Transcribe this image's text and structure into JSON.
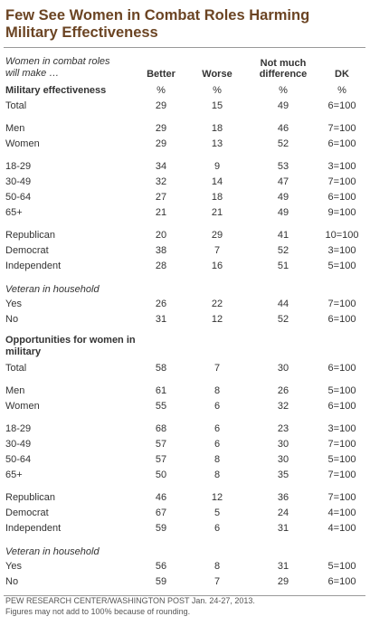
{
  "header": {
    "title_lines": [
      "Few See Women in Combat Roles Harming",
      "Military Effectiveness"
    ],
    "row_label_lines": [
      "Women in combat roles",
      "will make …"
    ],
    "columns": [
      {
        "lines": [
          "Better"
        ],
        "unit": "%"
      },
      {
        "lines": [
          "Worse"
        ],
        "unit": "%"
      },
      {
        "lines": [
          "Not much",
          "difference"
        ],
        "unit": "%"
      },
      {
        "lines": [
          "DK"
        ],
        "unit": "%"
      }
    ]
  },
  "sections": [
    {
      "title": "Military effectiveness",
      "groups": [
        {
          "rows": [
            [
              "Total",
              "29",
              "15",
              "49",
              "6=100"
            ]
          ]
        },
        {
          "rows": [
            [
              "Men",
              "29",
              "18",
              "46",
              "7=100"
            ],
            [
              "Women",
              "29",
              "13",
              "52",
              "6=100"
            ]
          ]
        },
        {
          "rows": [
            [
              "18-29",
              "34",
              "9",
              "53",
              "3=100"
            ],
            [
              "30-49",
              "32",
              "14",
              "47",
              "7=100"
            ],
            [
              "50-64",
              "27",
              "18",
              "49",
              "6=100"
            ],
            [
              "65+",
              "21",
              "21",
              "49",
              "9=100"
            ]
          ]
        },
        {
          "rows": [
            [
              "Republican",
              "20",
              "29",
              "41",
              "10=100"
            ],
            [
              "Democrat",
              "38",
              "7",
              "52",
              "3=100"
            ],
            [
              "Independent",
              "28",
              "16",
              "51",
              "5=100"
            ]
          ]
        },
        {
          "heading": "Veteran in household",
          "rows": [
            [
              "Yes",
              "26",
              "22",
              "44",
              "7=100"
            ],
            [
              "No",
              "31",
              "12",
              "52",
              "6=100"
            ]
          ]
        }
      ]
    },
    {
      "title": "Opportunities for women in military",
      "groups": [
        {
          "rows": [
            [
              "Total",
              "58",
              "7",
              "30",
              "6=100"
            ]
          ]
        },
        {
          "rows": [
            [
              "Men",
              "61",
              "8",
              "26",
              "5=100"
            ],
            [
              "Women",
              "55",
              "6",
              "32",
              "6=100"
            ]
          ]
        },
        {
          "rows": [
            [
              "18-29",
              "68",
              "6",
              "23",
              "3=100"
            ],
            [
              "30-49",
              "57",
              "6",
              "30",
              "7=100"
            ],
            [
              "50-64",
              "57",
              "8",
              "30",
              "5=100"
            ],
            [
              "65+",
              "50",
              "8",
              "35",
              "7=100"
            ]
          ]
        },
        {
          "rows": [
            [
              "Republican",
              "46",
              "12",
              "36",
              "7=100"
            ],
            [
              "Democrat",
              "67",
              "5",
              "24",
              "4=100"
            ],
            [
              "Independent",
              "59",
              "6",
              "31",
              "4=100"
            ]
          ]
        },
        {
          "heading": "Veteran in household",
          "rows": [
            [
              "Yes",
              "56",
              "8",
              "31",
              "5=100"
            ],
            [
              "No",
              "59",
              "7",
              "29",
              "6=100"
            ]
          ]
        }
      ]
    }
  ],
  "footer": [
    "PEW RESEARCH CENTER/WASHINGTON  POST Jan. 24-27, 2013.",
    "Figures may not add to 100% because of rounding."
  ]
}
